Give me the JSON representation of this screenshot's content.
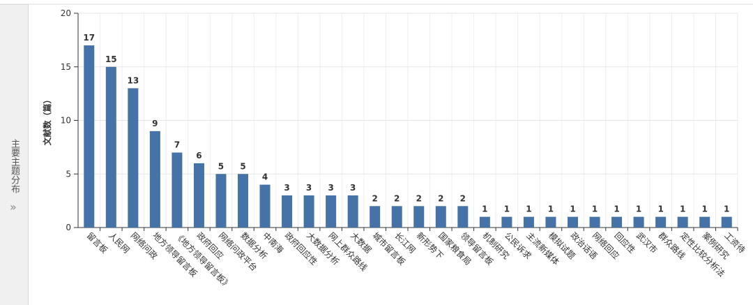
{
  "side_panel": {
    "title": "主要主题分布",
    "icon": "»"
  },
  "chart_data": {
    "type": "bar",
    "categories": [
      "留言板",
      "人民网",
      "网络问政",
      "地方领导留言板",
      "《地方领导留言板》",
      "政府回应",
      "网络问政平台",
      "数据分析",
      "中南海",
      "政府回应性",
      "大数据分析",
      "网上群众路线",
      "大数据",
      "城市留言板",
      "长江网",
      "新形势下",
      "国家粮食局",
      "领导留言板",
      "机制研究",
      "公民诉求",
      "主流新媒体",
      "模拟试题",
      "政治话语",
      "网络回应",
      "回应性",
      "武汉市",
      "群众路线",
      "定性比较分析法",
      "案例研究",
      "工资待"
    ],
    "values": [
      17,
      15,
      13,
      9,
      7,
      6,
      5,
      5,
      4,
      3,
      3,
      3,
      3,
      2,
      2,
      2,
      2,
      2,
      1,
      1,
      1,
      1,
      1,
      1,
      1,
      1,
      1,
      1,
      1,
      1
    ],
    "color": "#4572a7",
    "y_label": "文献数（篇）",
    "ylim": [
      0,
      20
    ],
    "yticks": [
      0,
      5,
      10,
      15,
      20
    ],
    "grid": true
  }
}
